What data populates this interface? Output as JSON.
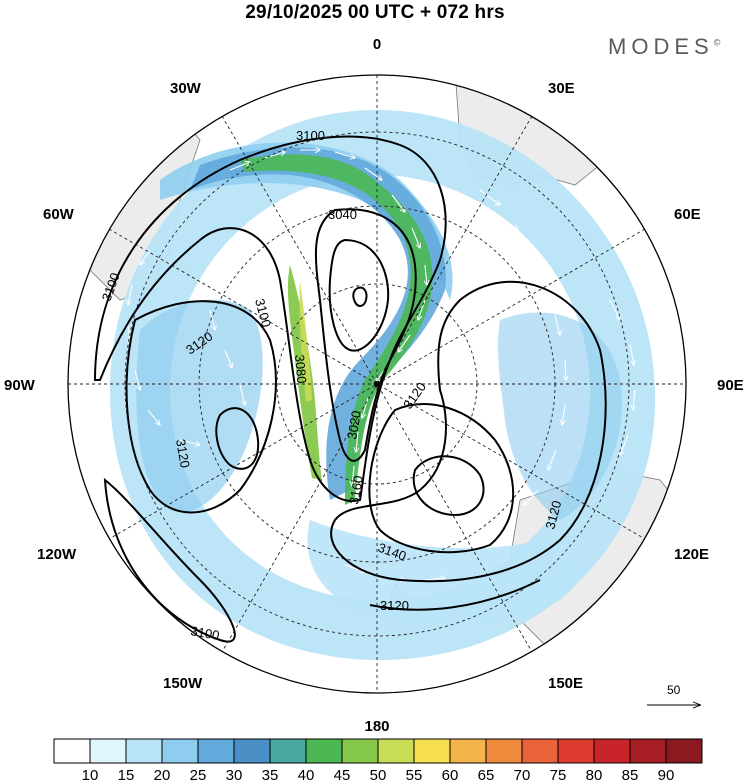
{
  "title": "29/10/2025  00 UTC  + 072 hrs",
  "brand": "MODES",
  "brand_mark": "©",
  "lon_labels": {
    "lon_0": "0",
    "lon_30e": "30E",
    "lon_60e": "60E",
    "lon_90e": "90E",
    "lon_120e": "120E",
    "lon_150e": "150E",
    "lon_180": "180",
    "lon_150w": "150W",
    "lon_120w": "120W",
    "lon_90w": "90W",
    "lon_60w": "60W",
    "lon_30w": "30W"
  },
  "contour_labels": {
    "c1": "3100",
    "c2": "3040",
    "c3": "3100",
    "c4": "3100",
    "c5": "3120",
    "c6": "3080",
    "c7": "3120",
    "c8": "3020",
    "c9": "3120",
    "c10": "3160",
    "c11": "3140",
    "c12": "3120",
    "c13": "3120",
    "c14": "3100"
  },
  "wind_scale": "50",
  "legend": {
    "ticks": [
      "10",
      "15",
      "20",
      "25",
      "30",
      "35",
      "40",
      "45",
      "50",
      "55",
      "60",
      "65",
      "70",
      "75",
      "80",
      "85",
      "90"
    ],
    "colors": [
      "#ffffff",
      "#e1f5fe",
      "#b9e4f8",
      "#8fcdf0",
      "#62a9dc",
      "#4a8fc6",
      "#48a9a0",
      "#4bb854",
      "#86c84a",
      "#c8dc55",
      "#f7e04f",
      "#f5b34b",
      "#ee8a3c",
      "#e8623a",
      "#dd3a32",
      "#c9232c",
      "#a61e24",
      "#8a1a1f"
    ]
  }
}
